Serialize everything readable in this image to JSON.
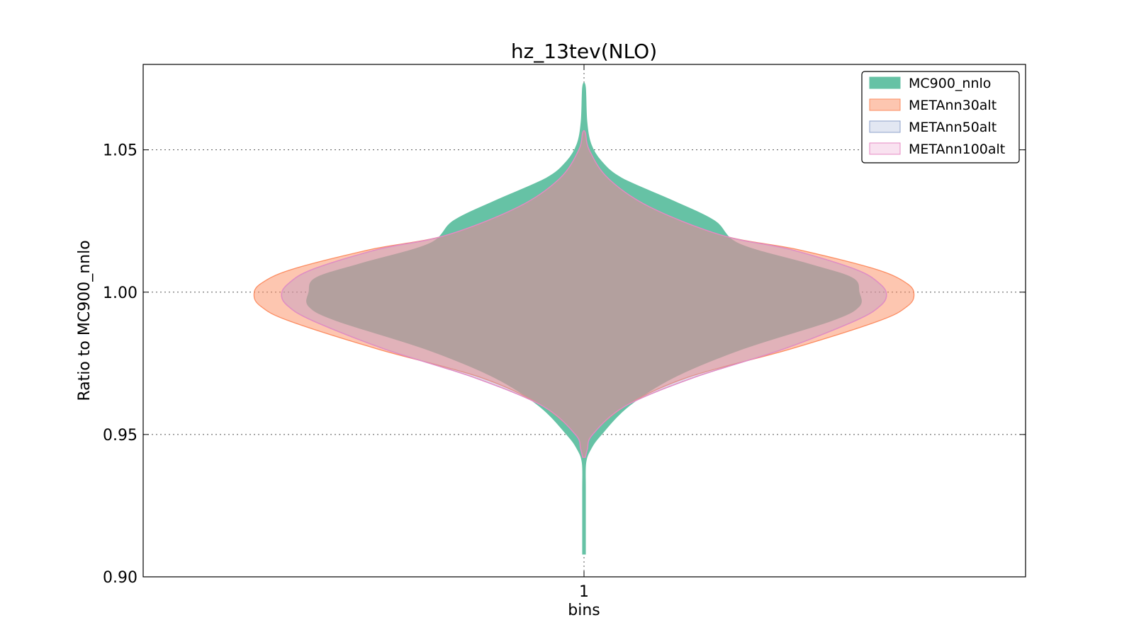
{
  "chart_data": {
    "type": "violin",
    "title": "hz_13tev(NLO)",
    "xlabel": "bins",
    "ylabel": "Ratio to MC900_nnlo",
    "categories": [
      "1"
    ],
    "ylim": [
      0.9,
      1.08
    ],
    "yticks": [
      "0.90",
      "0.95",
      "1.00",
      "1.05"
    ],
    "grid": true,
    "legend_position": "top-right",
    "series": [
      {
        "name": "MC900_nnlo",
        "color": "#66c2a5",
        "edge": "#66c2a5",
        "min": 0.908,
        "max": 1.072,
        "profile": [
          [
            0.908,
            0.004
          ],
          [
            0.93,
            0.004
          ],
          [
            0.94,
            0.005
          ],
          [
            0.945,
            0.02
          ],
          [
            0.95,
            0.05
          ],
          [
            0.96,
            0.13
          ],
          [
            0.97,
            0.26
          ],
          [
            0.98,
            0.46
          ],
          [
            0.99,
            0.72
          ],
          [
            0.995,
            0.8
          ],
          [
            1.0,
            0.8
          ],
          [
            1.005,
            0.78
          ],
          [
            1.01,
            0.65
          ],
          [
            1.017,
            0.45
          ],
          [
            1.025,
            0.38
          ],
          [
            1.032,
            0.26
          ],
          [
            1.04,
            0.11
          ],
          [
            1.046,
            0.05
          ],
          [
            1.052,
            0.02
          ],
          [
            1.06,
            0.008
          ],
          [
            1.072,
            0.004
          ]
        ]
      },
      {
        "name": "METAnn30alt",
        "color": "#fc8d62",
        "edge": "#fc8d62",
        "min": 0.942,
        "max": 1.056,
        "profile": [
          [
            0.942,
            0.004
          ],
          [
            0.945,
            0.01
          ],
          [
            0.95,
            0.025
          ],
          [
            0.96,
            0.12
          ],
          [
            0.97,
            0.3
          ],
          [
            0.98,
            0.6
          ],
          [
            0.99,
            0.86
          ],
          [
            0.995,
            0.94
          ],
          [
            0.999,
            0.96
          ],
          [
            1.003,
            0.94
          ],
          [
            1.008,
            0.85
          ],
          [
            1.015,
            0.62
          ],
          [
            1.02,
            0.4
          ],
          [
            1.03,
            0.19
          ],
          [
            1.04,
            0.07
          ],
          [
            1.05,
            0.015
          ],
          [
            1.056,
            0.004
          ]
        ]
      },
      {
        "name": "METAnn50alt",
        "color": "#8da0cb",
        "edge": "#8da0cb",
        "min": 0.942,
        "max": 1.056,
        "profile": [
          [
            0.942,
            0.004
          ],
          [
            0.945,
            0.01
          ],
          [
            0.95,
            0.026
          ],
          [
            0.96,
            0.12
          ],
          [
            0.97,
            0.32
          ],
          [
            0.98,
            0.58
          ],
          [
            0.99,
            0.79
          ],
          [
            0.995,
            0.86
          ],
          [
            0.999,
            0.88
          ],
          [
            1.003,
            0.86
          ],
          [
            1.008,
            0.79
          ],
          [
            1.015,
            0.6
          ],
          [
            1.02,
            0.4
          ],
          [
            1.03,
            0.19
          ],
          [
            1.04,
            0.07
          ],
          [
            1.05,
            0.015
          ],
          [
            1.056,
            0.004
          ]
        ]
      },
      {
        "name": "METAnn100alt",
        "color": "#e78ac3",
        "edge": "#e78ac3",
        "min": 0.942,
        "max": 1.056,
        "profile": [
          [
            0.942,
            0.004
          ],
          [
            0.945,
            0.01
          ],
          [
            0.95,
            0.025
          ],
          [
            0.96,
            0.12
          ],
          [
            0.97,
            0.32
          ],
          [
            0.98,
            0.58
          ],
          [
            0.99,
            0.79
          ],
          [
            0.995,
            0.86
          ],
          [
            0.999,
            0.88
          ],
          [
            1.003,
            0.86
          ],
          [
            1.008,
            0.79
          ],
          [
            1.015,
            0.6
          ],
          [
            1.02,
            0.4
          ],
          [
            1.03,
            0.19
          ],
          [
            1.04,
            0.07
          ],
          [
            1.05,
            0.015
          ],
          [
            1.056,
            0.004
          ]
        ]
      }
    ]
  }
}
